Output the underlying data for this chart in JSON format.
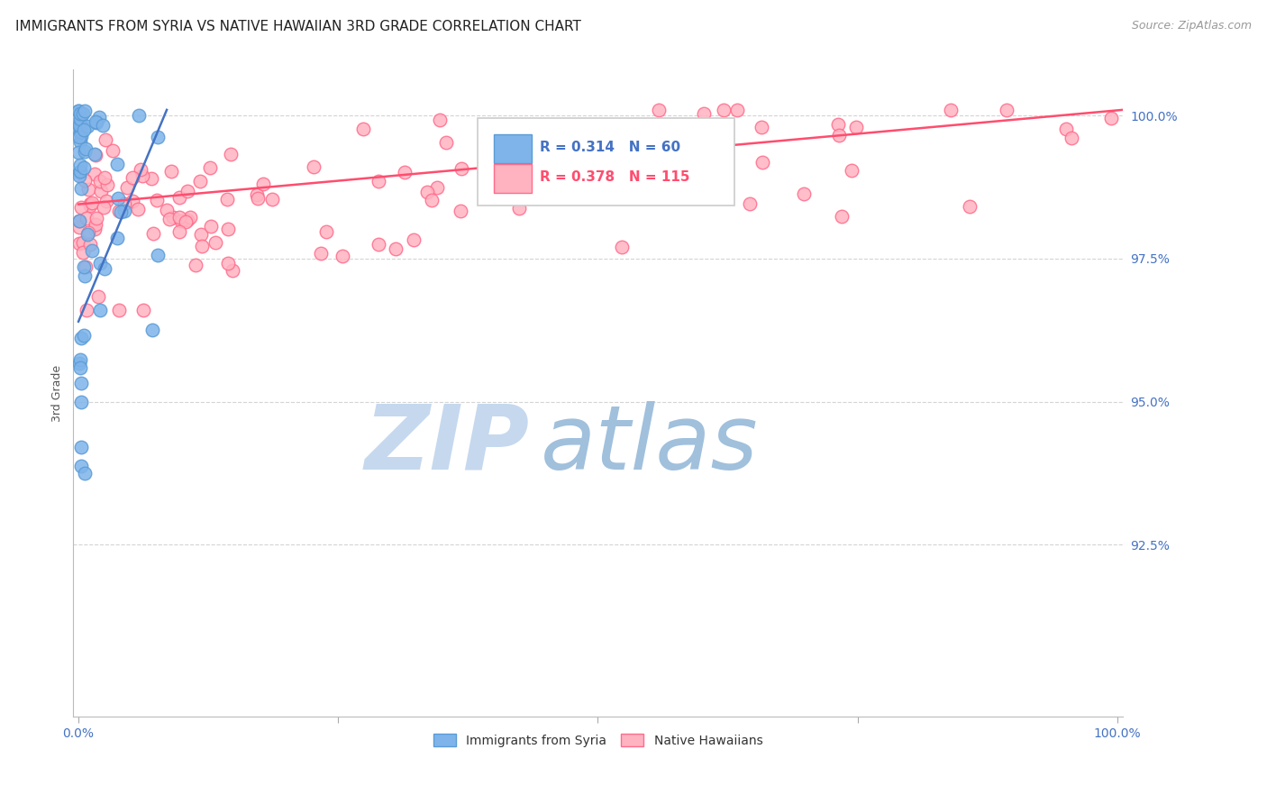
{
  "title": "IMMIGRANTS FROM SYRIA VS NATIVE HAWAIIAN 3RD GRADE CORRELATION CHART",
  "source_text": "Source: ZipAtlas.com",
  "ylabel": "3rd Grade",
  "y_tick_labels": [
    "100.0%",
    "97.5%",
    "95.0%",
    "92.5%"
  ],
  "y_tick_values": [
    1.0,
    0.975,
    0.95,
    0.925
  ],
  "x_lim": [
    -0.005,
    1.005
  ],
  "y_lim": [
    0.895,
    1.008
  ],
  "color_syria": "#7EB4EA",
  "color_syria_edge": "#5B9BD5",
  "color_hawaii": "#FFB3C1",
  "color_hawaii_edge": "#FF6B8A",
  "color_syria_line": "#4472C4",
  "color_hawaii_line": "#FF4D6E",
  "color_axis_labels": "#4472C4",
  "color_grid": "#D0D0D0",
  "watermark_zip_color": "#C5D8EE",
  "watermark_atlas_color": "#A0C0DC",
  "title_fontsize": 11,
  "source_fontsize": 9,
  "tick_fontsize": 10,
  "ylabel_fontsize": 9,
  "legend_r1": "R = 0.314",
  "legend_n1": "N = 60",
  "legend_r2": "R = 0.378",
  "legend_n2": "N = 115",
  "legend_color1": "#4472C4",
  "legend_color2": "#FF4D6E"
}
